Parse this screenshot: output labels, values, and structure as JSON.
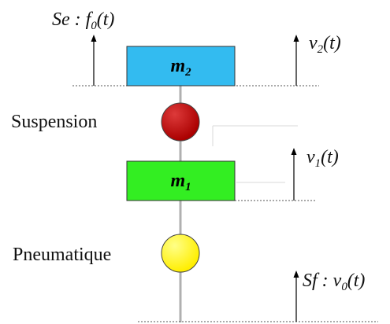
{
  "labels": {
    "effort_source": {
      "prefix": "Se : f",
      "sub": "0",
      "suffix": "(t)"
    },
    "velocity_top": {
      "prefix": "v",
      "sub": "2",
      "suffix": "(t)"
    },
    "velocity_mid": {
      "prefix": "v",
      "sub": "1",
      "suffix": "(t)"
    },
    "flow_source": {
      "prefix": "Sf : v",
      "sub": "0",
      "suffix": "(t)"
    },
    "suspension": "Suspension",
    "pneumatique": "Pneumatique"
  },
  "masses": {
    "top": {
      "base": "m",
      "sub": "2",
      "color": "#33bbf0"
    },
    "bottom": {
      "base": "m",
      "sub": "1",
      "color": "#33ee22"
    }
  },
  "elements": {
    "suspension_color": "#aa0000",
    "pneumatique_color": "#ffee00"
  }
}
